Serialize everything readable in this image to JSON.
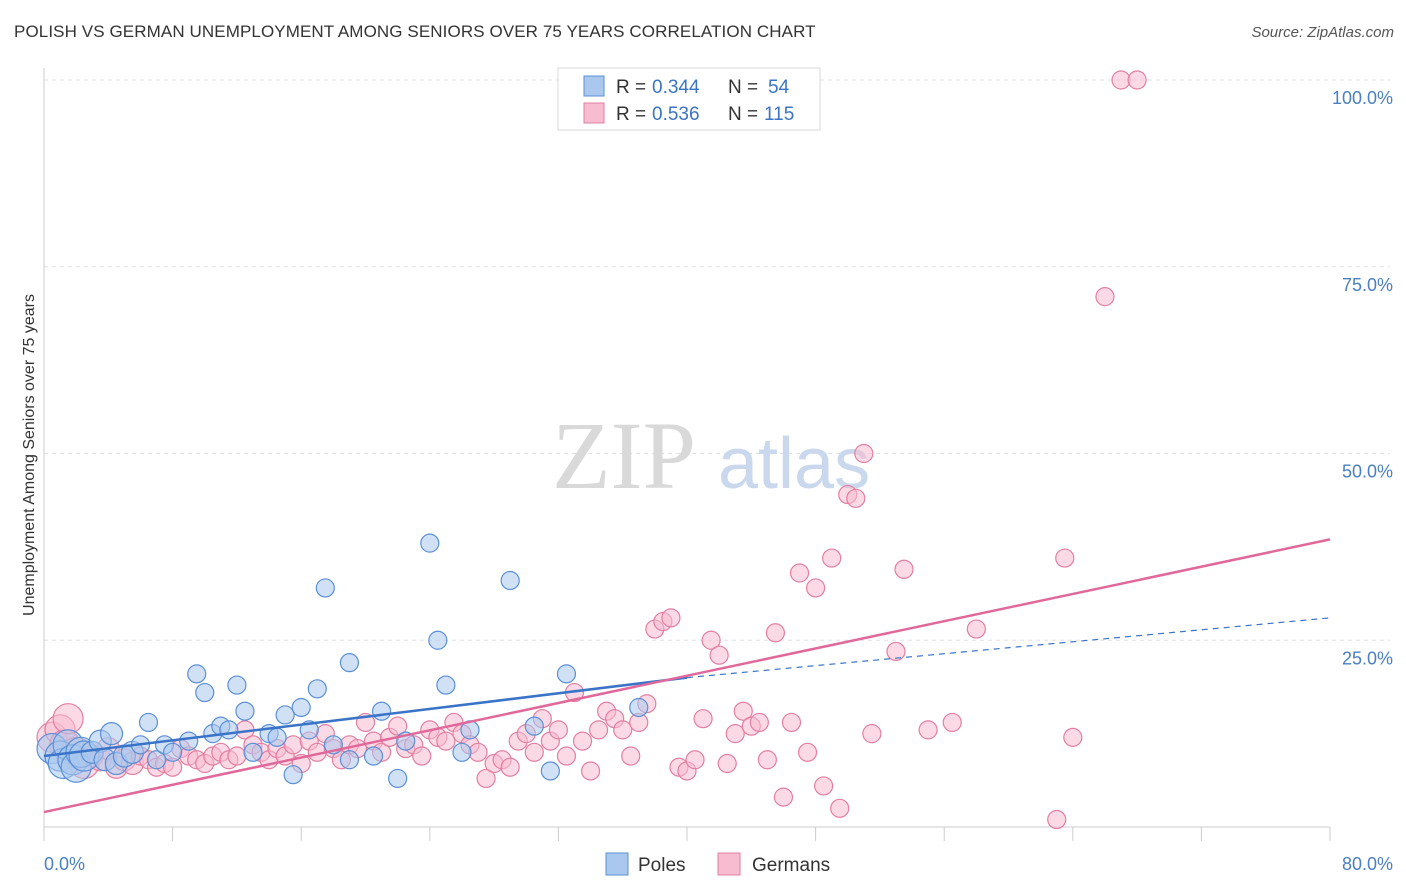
{
  "title": "POLISH VS GERMAN UNEMPLOYMENT AMONG SENIORS OVER 75 YEARS CORRELATION CHART",
  "source": "Source: ZipAtlas.com",
  "watermark": {
    "zip": "ZIP",
    "atlas": "atlas"
  },
  "colors": {
    "poles_fill": "#aac8ee",
    "poles_stroke": "#5b8fd6",
    "poles_line": "#3a74c8",
    "germans_fill": "#f7bcd0",
    "germans_stroke": "#e27fa2",
    "germans_line": "#e0689a",
    "grid": "#e0e0e8",
    "tick_label": "#4a7fc1"
  },
  "legend": {
    "rows": [
      {
        "r_label": "R =",
        "r_value": "0.344",
        "n_label": "N =",
        "n_value": "54"
      },
      {
        "r_label": "R =",
        "r_value": "0.536",
        "n_label": "N =",
        "n_value": "115"
      }
    ]
  },
  "chart_data": {
    "type": "scatter",
    "title": "POLISH VS GERMAN UNEMPLOYMENT AMONG SENIORS OVER 75 YEARS CORRELATION CHART",
    "xlabel": "",
    "ylabel": "Unemployment Among Seniors over 75 years",
    "xlim": [
      0,
      80
    ],
    "ylim": [
      0,
      100
    ],
    "x_tick_labels": [
      "0.0%",
      "80.0%"
    ],
    "y_ticks": [
      25,
      50,
      75,
      100
    ],
    "y_tick_labels": [
      "25.0%",
      "50.0%",
      "75.0%",
      "100.0%"
    ],
    "grid": true,
    "legend_position": "top-center",
    "series": [
      {
        "name": "Poles",
        "points": [
          [
            0.5,
            10.5
          ],
          [
            1,
            9.5
          ],
          [
            1.2,
            8.5
          ],
          [
            1.5,
            11
          ],
          [
            1.8,
            9
          ],
          [
            2,
            8
          ],
          [
            2.3,
            10
          ],
          [
            2.5,
            9.5
          ],
          [
            3,
            10
          ],
          [
            3.5,
            11.5
          ],
          [
            3.8,
            9
          ],
          [
            4.2,
            12.5
          ],
          [
            4.5,
            8.5
          ],
          [
            5,
            9.5
          ],
          [
            5.5,
            10
          ],
          [
            6,
            11
          ],
          [
            6.5,
            14
          ],
          [
            7,
            9
          ],
          [
            7.5,
            11
          ],
          [
            8,
            10
          ],
          [
            9,
            11.5
          ],
          [
            9.5,
            20.5
          ],
          [
            10,
            18
          ],
          [
            10.5,
            12.5
          ],
          [
            11,
            13.5
          ],
          [
            11.5,
            13
          ],
          [
            12,
            19
          ],
          [
            12.5,
            15.5
          ],
          [
            13,
            10
          ],
          [
            14,
            12.5
          ],
          [
            14.5,
            12
          ],
          [
            15,
            15
          ],
          [
            15.5,
            7
          ],
          [
            16,
            16
          ],
          [
            16.5,
            13
          ],
          [
            17,
            18.5
          ],
          [
            17.5,
            32
          ],
          [
            18,
            11
          ],
          [
            19,
            22
          ],
          [
            19,
            9
          ],
          [
            20.5,
            9.5
          ],
          [
            21,
            15.5
          ],
          [
            22,
            6.5
          ],
          [
            22.5,
            11.5
          ],
          [
            24,
            38
          ],
          [
            24.5,
            25
          ],
          [
            25,
            19
          ],
          [
            26,
            10
          ],
          [
            26.5,
            13
          ],
          [
            29,
            33
          ],
          [
            30.5,
            13.5
          ],
          [
            31.5,
            7.5
          ],
          [
            32.5,
            20.5
          ],
          [
            37,
            16
          ]
        ],
        "trend": {
          "x": [
            0,
            40
          ],
          "y": [
            9.5,
            20
          ],
          "extended_to": [
            80,
            28
          ]
        }
      },
      {
        "name": "Germans",
        "points": [
          [
            0.5,
            12
          ],
          [
            1,
            13
          ],
          [
            1.3,
            11
          ],
          [
            1.5,
            14.5
          ],
          [
            2,
            10
          ],
          [
            2.5,
            8.5
          ],
          [
            3,
            9.5
          ],
          [
            3.5,
            9
          ],
          [
            4,
            10.5
          ],
          [
            4.5,
            8
          ],
          [
            5,
            9
          ],
          [
            5.5,
            8.5
          ],
          [
            6,
            9.5
          ],
          [
            6.5,
            9
          ],
          [
            7,
            8
          ],
          [
            7.5,
            8.5
          ],
          [
            8,
            8
          ],
          [
            8.5,
            10.5
          ],
          [
            9,
            9.5
          ],
          [
            9.5,
            9
          ],
          [
            10,
            8.5
          ],
          [
            10.5,
            9.5
          ],
          [
            11,
            10
          ],
          [
            11.5,
            9
          ],
          [
            12,
            9.5
          ],
          [
            12.5,
            13
          ],
          [
            13,
            11
          ],
          [
            13.5,
            10
          ],
          [
            14,
            9
          ],
          [
            14.5,
            10.5
          ],
          [
            15,
            9.5
          ],
          [
            15.5,
            11
          ],
          [
            16,
            8.5
          ],
          [
            16.5,
            11.5
          ],
          [
            17,
            10
          ],
          [
            17.5,
            12.5
          ],
          [
            18,
            10.5
          ],
          [
            18.5,
            9
          ],
          [
            19,
            11
          ],
          [
            19.5,
            10.5
          ],
          [
            20,
            14
          ],
          [
            20.5,
            11.5
          ],
          [
            21,
            10
          ],
          [
            21.5,
            12
          ],
          [
            22,
            13.5
          ],
          [
            22.5,
            10.5
          ],
          [
            23,
            11
          ],
          [
            23.5,
            9.5
          ],
          [
            24,
            13
          ],
          [
            24.5,
            12
          ],
          [
            25,
            11.5
          ],
          [
            25.5,
            14
          ],
          [
            26,
            12.5
          ],
          [
            26.5,
            11
          ],
          [
            27,
            10
          ],
          [
            27.5,
            6.5
          ],
          [
            28,
            8.5
          ],
          [
            28.5,
            9
          ],
          [
            29,
            8
          ],
          [
            29.5,
            11.5
          ],
          [
            30,
            12.5
          ],
          [
            30.5,
            10
          ],
          [
            31,
            14.5
          ],
          [
            31.5,
            11.5
          ],
          [
            32,
            13
          ],
          [
            32.5,
            9.5
          ],
          [
            33,
            18
          ],
          [
            33.5,
            11.5
          ],
          [
            34,
            7.5
          ],
          [
            34.5,
            13
          ],
          [
            35,
            15.5
          ],
          [
            35.5,
            14.5
          ],
          [
            36,
            13
          ],
          [
            36.5,
            9.5
          ],
          [
            37,
            14
          ],
          [
            37.5,
            16.5
          ],
          [
            38,
            26.5
          ],
          [
            38.5,
            27.5
          ],
          [
            39,
            28
          ],
          [
            39.5,
            8
          ],
          [
            40,
            7.5
          ],
          [
            40.5,
            9
          ],
          [
            41,
            14.5
          ],
          [
            41.5,
            25
          ],
          [
            42,
            23
          ],
          [
            42.5,
            8.5
          ],
          [
            43,
            12.5
          ],
          [
            43.5,
            15.5
          ],
          [
            44,
            13.5
          ],
          [
            44.5,
            14
          ],
          [
            45,
            9
          ],
          [
            45.5,
            26
          ],
          [
            46,
            4
          ],
          [
            46.5,
            14
          ],
          [
            47,
            34
          ],
          [
            47.5,
            10
          ],
          [
            48,
            32
          ],
          [
            48.5,
            5.5
          ],
          [
            49,
            36
          ],
          [
            49.5,
            2.5
          ],
          [
            50,
            44.5
          ],
          [
            50.5,
            44
          ],
          [
            51,
            50
          ],
          [
            51.5,
            12.5
          ],
          [
            53,
            23.5
          ],
          [
            53.5,
            34.5
          ],
          [
            55,
            13
          ],
          [
            56.5,
            14
          ],
          [
            58,
            26.5
          ],
          [
            63,
            1
          ],
          [
            63.5,
            36
          ],
          [
            64,
            12
          ],
          [
            66,
            71
          ],
          [
            67,
            100
          ],
          [
            68,
            100
          ]
        ],
        "trend": {
          "x": [
            0,
            80
          ],
          "y": [
            2,
            38.5
          ]
        }
      }
    ]
  },
  "bottom_legend": {
    "items": [
      "Poles",
      "Germans"
    ]
  }
}
